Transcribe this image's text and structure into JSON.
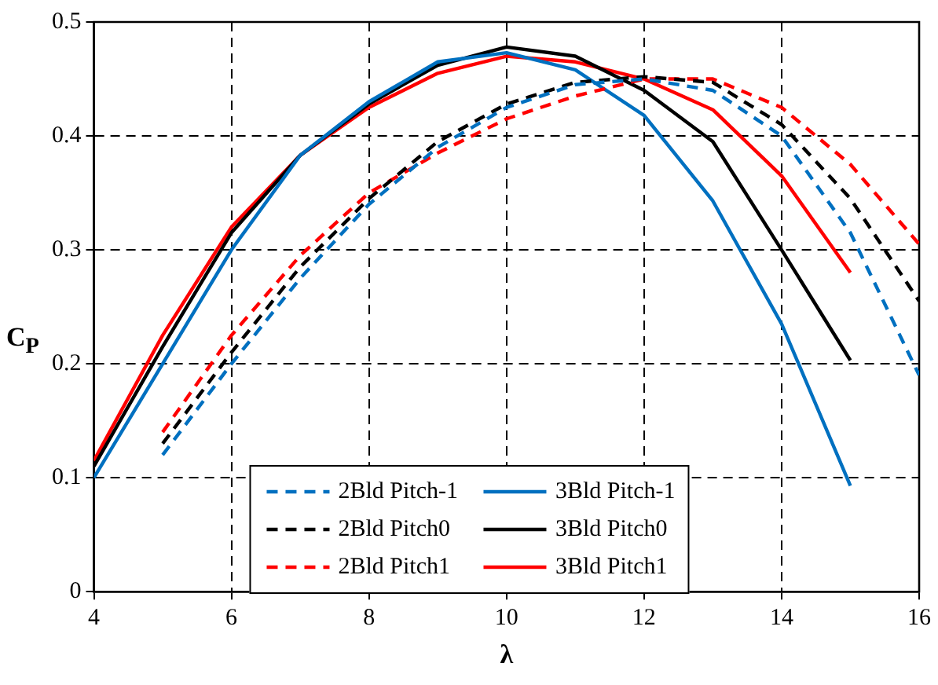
{
  "chart_data": {
    "type": "line",
    "xlabel": "λ",
    "ylabel": "C$_{P}$",
    "xlim": [
      4,
      16
    ],
    "xticks": [
      4,
      6,
      8,
      10,
      12,
      14,
      16
    ],
    "ylim": [
      0,
      0.5
    ],
    "yticks": [
      0,
      0.1,
      0.2,
      0.3,
      0.4,
      0.5
    ],
    "grid": true,
    "legend": "bottom",
    "marker": "none",
    "series": [
      {
        "name": "2Bld Pitch-1",
        "color": "#0070c0",
        "line_style": "dashed",
        "x": [
          5,
          6,
          7,
          8,
          9,
          10,
          11,
          12,
          13,
          14,
          15,
          16
        ],
        "values": [
          0.12,
          0.2,
          0.275,
          0.34,
          0.39,
          0.425,
          0.445,
          0.45,
          0.44,
          0.4,
          0.315,
          0.19
        ]
      },
      {
        "name": "2Bld Pitch0",
        "color": "#000000",
        "line_style": "dashed",
        "x": [
          5,
          6,
          7,
          8,
          9,
          10,
          11,
          12,
          13,
          14,
          15,
          16
        ],
        "values": [
          0.13,
          0.21,
          0.285,
          0.345,
          0.395,
          0.428,
          0.447,
          0.452,
          0.447,
          0.41,
          0.345,
          0.255
        ]
      },
      {
        "name": "2Bld Pitch1",
        "color": "#ff0000",
        "line_style": "dashed",
        "x": [
          5,
          6,
          7,
          8,
          9,
          10,
          11,
          12,
          13,
          14,
          15,
          16
        ],
        "values": [
          0.14,
          0.225,
          0.295,
          0.35,
          0.385,
          0.415,
          0.435,
          0.45,
          0.45,
          0.425,
          0.375,
          0.305
        ]
      },
      {
        "name": "3Bld Pitch-1",
        "color": "#0070c0",
        "line_style": "solid",
        "x": [
          4,
          5,
          6,
          7,
          8,
          9,
          10,
          11,
          12,
          13,
          14,
          15
        ],
        "values": [
          0.1,
          0.2,
          0.3,
          0.383,
          0.43,
          0.465,
          0.473,
          0.458,
          0.418,
          0.343,
          0.235,
          0.093
        ]
      },
      {
        "name": "3Bld Pitch0",
        "color": "#000000",
        "line_style": "solid",
        "x": [
          4,
          5,
          6,
          7,
          8,
          9,
          10,
          11,
          12,
          13,
          14,
          15
        ],
        "values": [
          0.11,
          0.215,
          0.315,
          0.383,
          0.428,
          0.462,
          0.478,
          0.47,
          0.44,
          0.395,
          0.3,
          0.203
        ]
      },
      {
        "name": "3Bld Pitch1",
        "color": "#ff0000",
        "line_style": "solid",
        "x": [
          4,
          5,
          6,
          7,
          8,
          9,
          10,
          11,
          12,
          13,
          14,
          15
        ],
        "values": [
          0.115,
          0.225,
          0.32,
          0.383,
          0.425,
          0.455,
          0.47,
          0.465,
          0.45,
          0.423,
          0.365,
          0.28
        ]
      }
    ]
  }
}
